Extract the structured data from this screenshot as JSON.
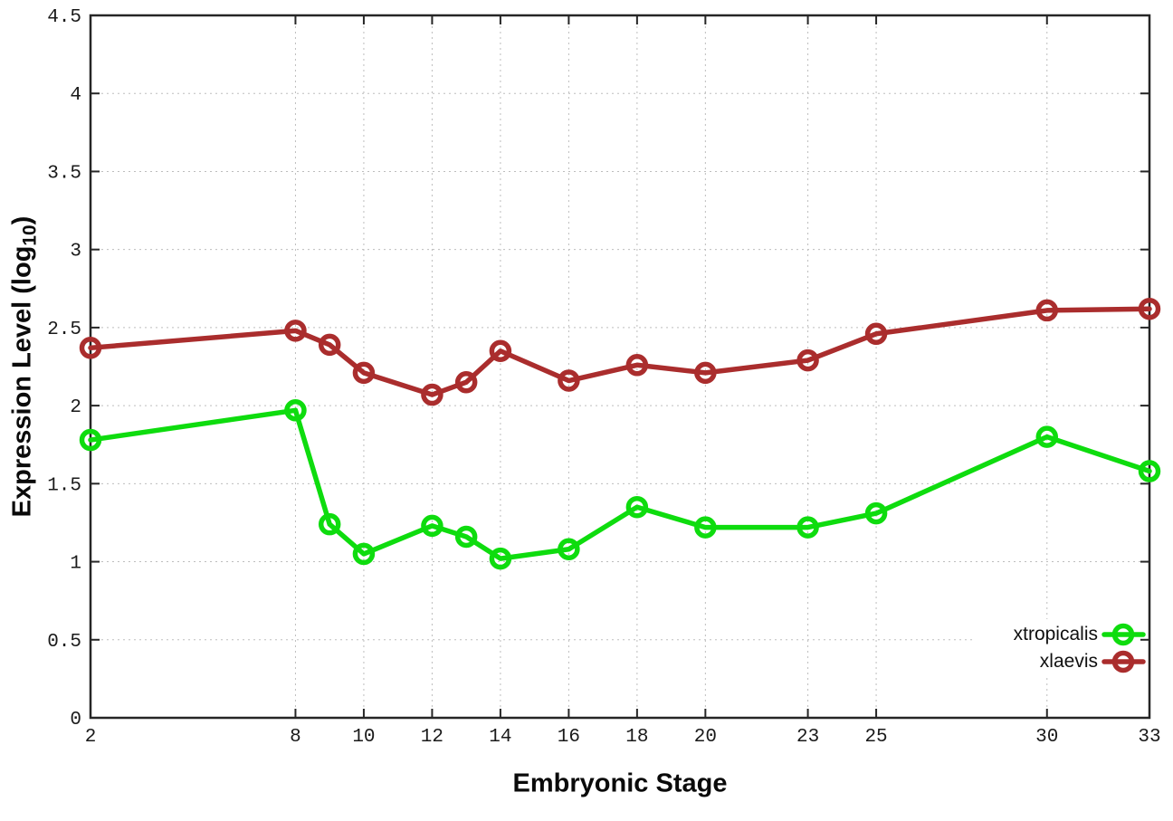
{
  "chart_data": {
    "type": "line",
    "title": "",
    "xlabel": "Embryonic Stage",
    "ylabel": "Expression Level (log10)",
    "ylabel_parts": {
      "pre": "Expression Level (log",
      "sub": "10",
      "post": ")"
    },
    "xlim": [
      2,
      33
    ],
    "ylim": [
      0,
      4.5
    ],
    "grid": true,
    "legend_position": "bottom-right",
    "x": [
      2,
      8,
      9,
      10,
      12,
      13,
      14,
      16,
      18,
      20,
      23,
      25,
      30,
      33
    ],
    "xtick_labels": [
      "2",
      "8",
      "10",
      "12",
      "14",
      "16",
      "18",
      "20",
      "23",
      "25",
      "30",
      "33"
    ],
    "xtick_values": [
      2,
      8,
      10,
      12,
      14,
      16,
      18,
      20,
      23,
      25,
      30,
      33
    ],
    "ytick_labels": [
      "0",
      "0.5",
      "1",
      "1.5",
      "2",
      "2.5",
      "3",
      "3.5",
      "4",
      "4.5"
    ],
    "ytick_values": [
      0,
      0.5,
      1,
      1.5,
      2,
      2.5,
      3,
      3.5,
      4,
      4.5
    ],
    "series": [
      {
        "name": "xtropicalis",
        "color": "#0EDC0E",
        "values": [
          1.78,
          1.97,
          1.24,
          1.05,
          1.23,
          1.16,
          1.02,
          1.08,
          1.35,
          1.22,
          1.22,
          1.31,
          1.8,
          1.58
        ]
      },
      {
        "name": "xlaevis",
        "color": "#AA2D2D",
        "values": [
          2.37,
          2.48,
          2.39,
          2.21,
          2.07,
          2.15,
          2.35,
          2.16,
          2.26,
          2.21,
          2.29,
          2.46,
          2.61,
          2.62
        ]
      }
    ],
    "colors": {
      "border": "#262626",
      "grid": "#bdbdbd",
      "tick_text": "#1a1a1a"
    }
  }
}
